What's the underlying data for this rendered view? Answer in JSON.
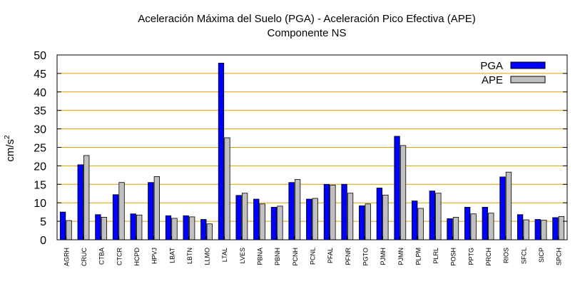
{
  "chart_data": {
    "type": "bar",
    "title_line1": "Aceleración Máxima del Suelo (PGA) -  Aceleración Pico Efectiva (APE)",
    "title_line2": "Componente NS",
    "ylabel": "cm/s",
    "ylabel_sup": "2",
    "xlabel": "",
    "ylim": [
      0,
      50
    ],
    "yticks": [
      0,
      5,
      10,
      15,
      20,
      25,
      30,
      35,
      40,
      45,
      50
    ],
    "grid": true,
    "legend_position": "top-right",
    "colors": {
      "grid": "#e0a000",
      "PGA": "#0000ff",
      "APE": "#c0c0c0"
    },
    "categories": [
      "AGRH",
      "CRUC",
      "CTBA",
      "CTCR",
      "HCPD",
      "HPVJ",
      "LBAT",
      "LBTN",
      "LLMO",
      "LTAL",
      "LVES",
      "PBNA",
      "PBNH",
      "PCNH",
      "PCNL",
      "PFAL",
      "PFNR",
      "PGTO",
      "PJMH",
      "PJMN",
      "PLPM",
      "PLRL",
      "POSH",
      "PPTG",
      "PRCH",
      "RIOS",
      "SFCL",
      "SICP",
      "SPCH"
    ],
    "series": [
      {
        "name": "PGA",
        "values": [
          7.5,
          20.3,
          6.8,
          12.2,
          7.0,
          15.5,
          6.5,
          6.5,
          5.5,
          47.8,
          12.0,
          11.0,
          8.8,
          15.5,
          11.0,
          15.0,
          15.0,
          9.2,
          14.0,
          28.0,
          10.5,
          13.2,
          5.7,
          8.8,
          8.8,
          17.0,
          6.8,
          5.5,
          6.0
        ]
      },
      {
        "name": "APE",
        "values": [
          5.2,
          22.8,
          6.1,
          15.5,
          6.7,
          17.1,
          5.8,
          6.2,
          4.3,
          27.6,
          12.6,
          9.7,
          9.1,
          16.3,
          11.2,
          14.8,
          12.6,
          9.7,
          12.1,
          25.5,
          8.5,
          12.6,
          6.1,
          7.0,
          7.2,
          18.3,
          5.4,
          5.3,
          6.3
        ]
      }
    ]
  }
}
